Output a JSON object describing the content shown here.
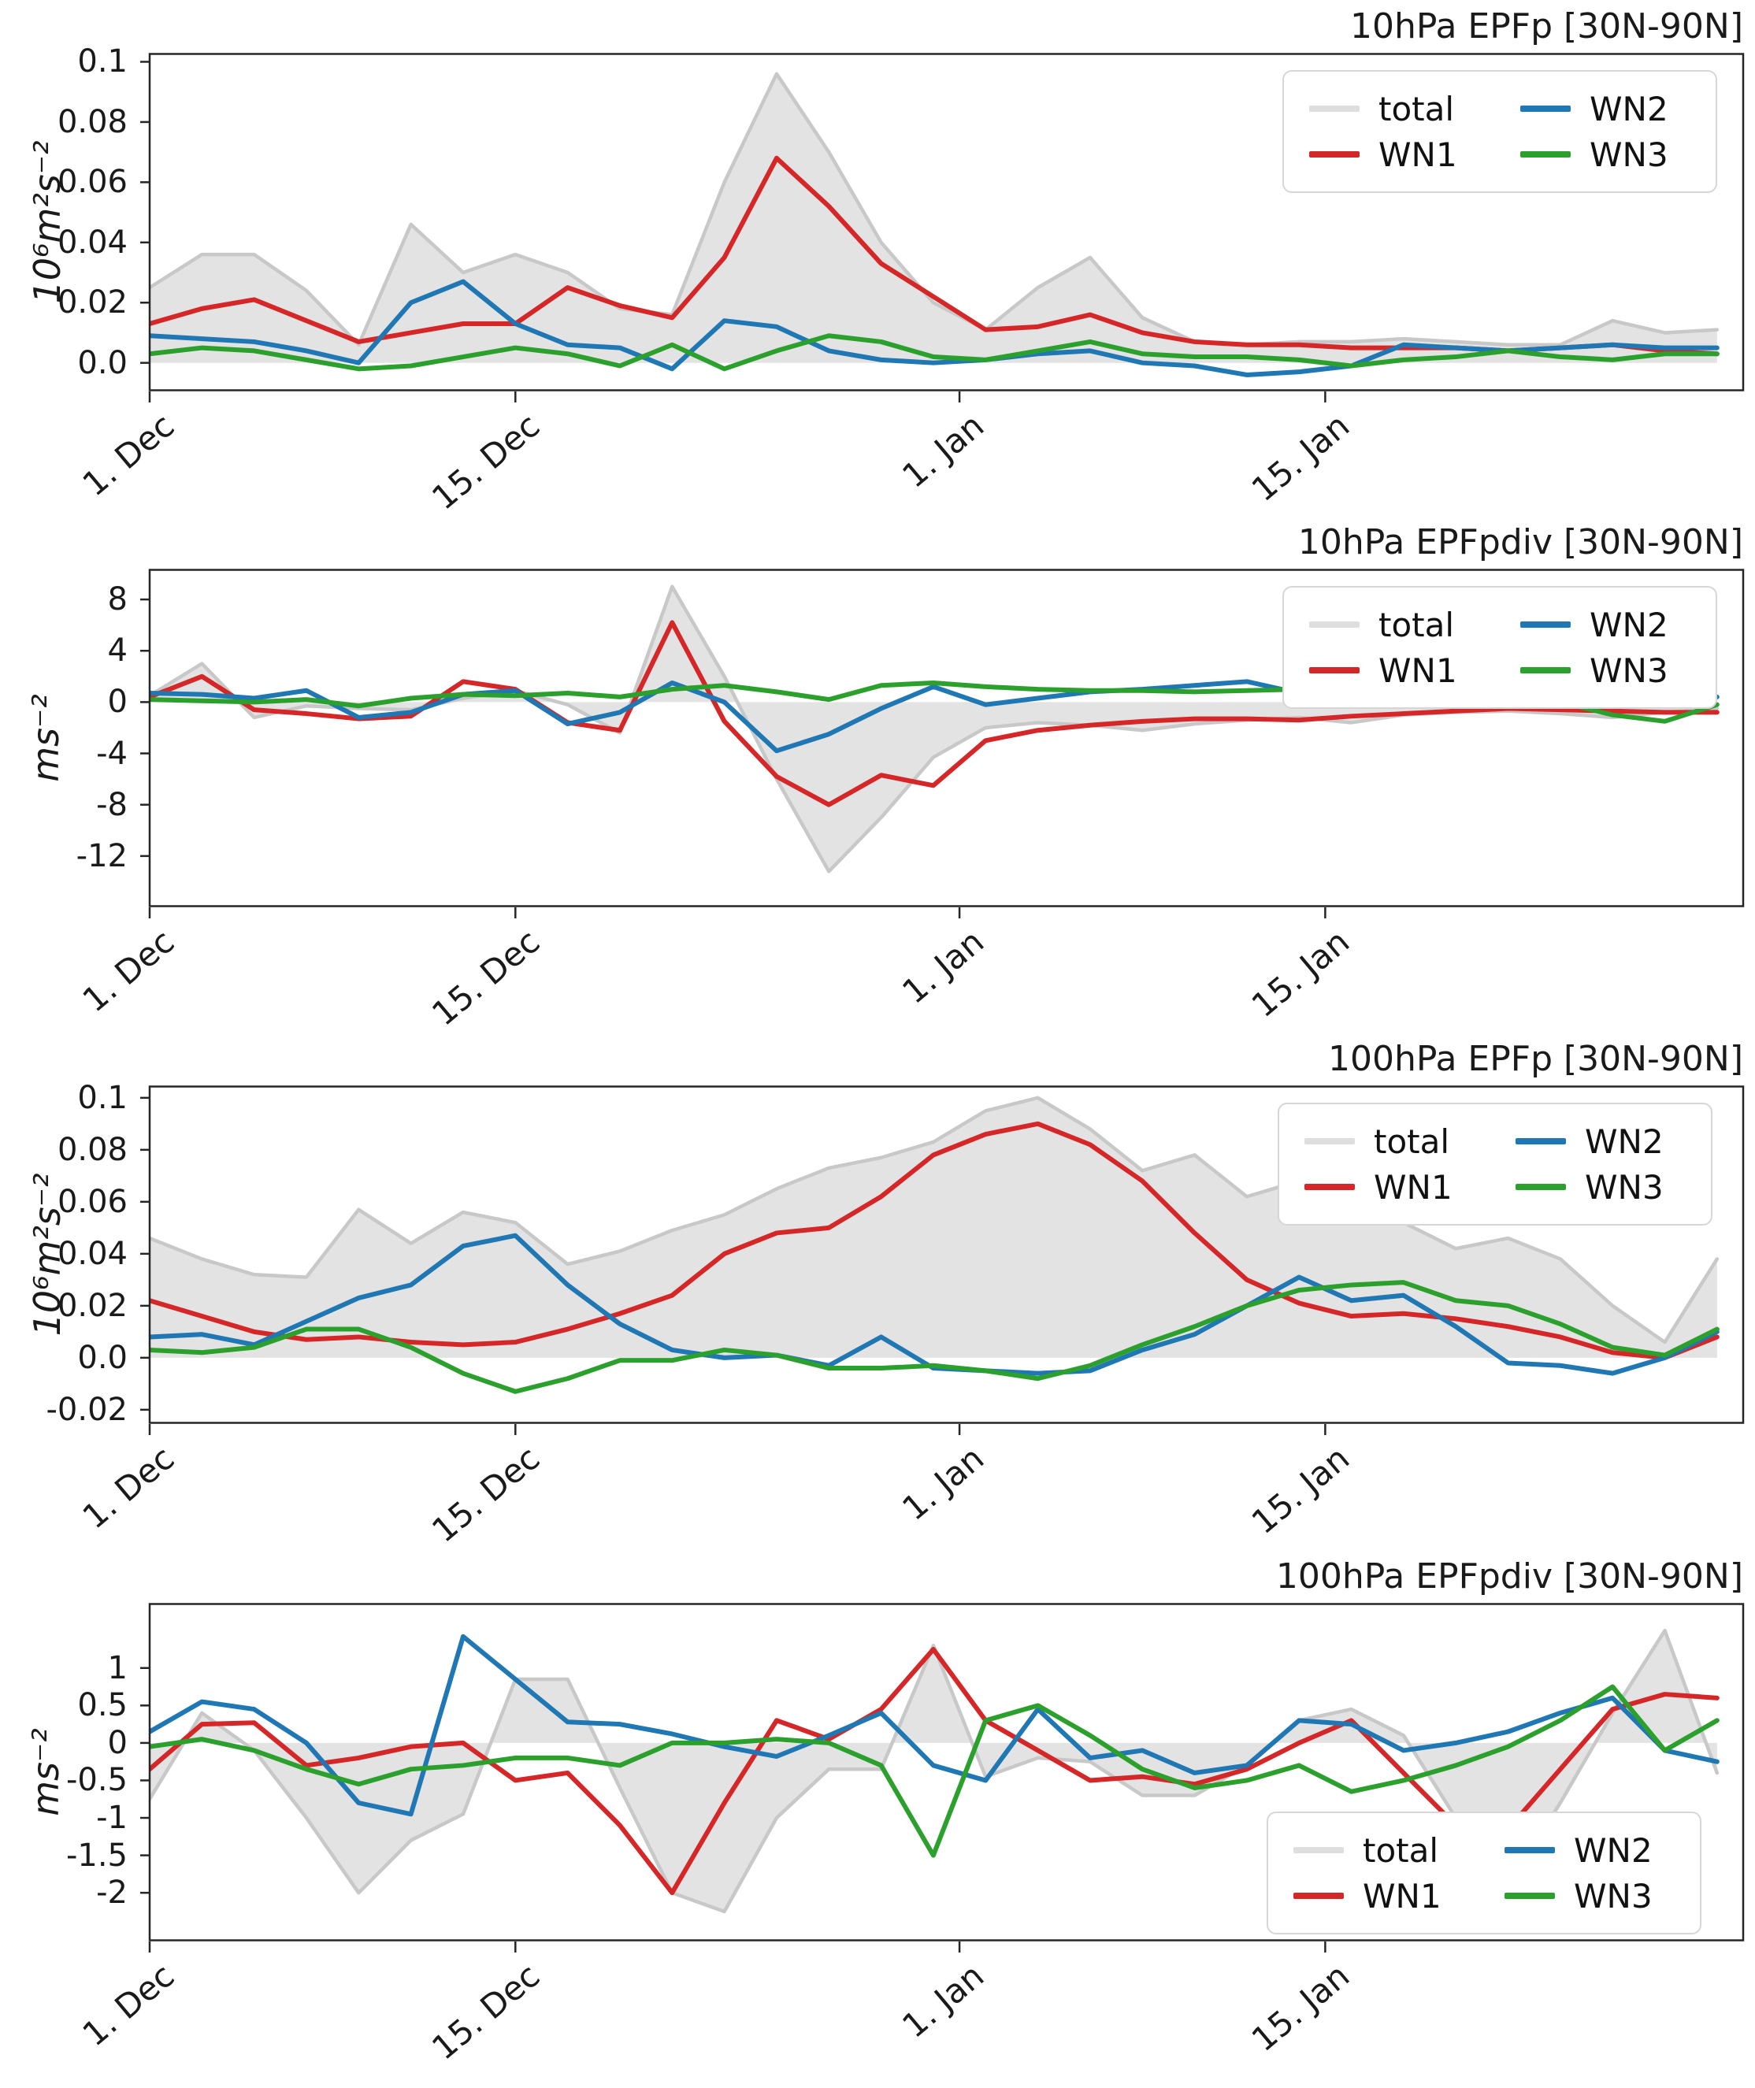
{
  "colors": {
    "total_fill": "#e3e3e3",
    "total_line": "#c8c8c8",
    "legend_total": "#dedede",
    "wn1": "#d62728",
    "wn2": "#1f77b4",
    "wn3": "#2ca02c",
    "axis": "#262626"
  },
  "legend": {
    "entries": [
      {
        "label": "total",
        "color_key": "legend_total"
      },
      {
        "label": "WN1",
        "color_key": "wn1"
      },
      {
        "label": "WN2",
        "color_key": "wn2"
      },
      {
        "label": "WN3",
        "color_key": "wn3"
      }
    ]
  },
  "chart_data": {
    "type": "line",
    "x_axis_note": "days since 1 Dec, daily time series estimated at 2-day resolution",
    "x_days": [
      0,
      2,
      4,
      6,
      8,
      10,
      12,
      14,
      16,
      18,
      20,
      22,
      24,
      26,
      28,
      30,
      32,
      34,
      36,
      38,
      40,
      42,
      44,
      46,
      48,
      50,
      52,
      54,
      56,
      58,
      60
    ],
    "x_range": [
      0,
      61
    ],
    "x_ticks": [
      {
        "day": 0,
        "label": "1. Dec"
      },
      {
        "day": 14,
        "label": "15. Dec"
      },
      {
        "day": 31,
        "label": "1. Jan"
      },
      {
        "day": 45,
        "label": "15. Jan"
      }
    ],
    "panels": [
      {
        "title": "10hPa EPFp [30N-90N]",
        "ylabel": "10⁶m²s⁻²",
        "ylim": [
          -0.0095,
          0.103
        ],
        "yticks": [
          {
            "v": 0.1,
            "label": "0.1"
          },
          {
            "v": 0.08,
            "label": "0.08"
          },
          {
            "v": 0.06,
            "label": "0.06"
          },
          {
            "v": 0.04,
            "label": "0.04"
          },
          {
            "v": 0.02,
            "label": "0.02"
          },
          {
            "v": 0.0,
            "label": "0.0"
          }
        ],
        "legend_position": "upper right",
        "series": [
          {
            "name": "total",
            "style": "area",
            "values": [
              0.025,
              0.036,
              0.036,
              0.024,
              0.006,
              0.046,
              0.03,
              0.036,
              0.03,
              0.018,
              0.016,
              0.06,
              0.096,
              0.07,
              0.04,
              0.02,
              0.011,
              0.025,
              0.035,
              0.015,
              0.007,
              0.006,
              0.007,
              0.007,
              0.008,
              0.007,
              0.006,
              0.006,
              0.014,
              0.01,
              0.011
            ]
          },
          {
            "name": "WN1",
            "style": "line",
            "color_key": "wn1",
            "values": [
              0.013,
              0.018,
              0.021,
              0.014,
              0.007,
              0.01,
              0.013,
              0.013,
              0.025,
              0.019,
              0.015,
              0.035,
              0.068,
              0.052,
              0.033,
              0.022,
              0.011,
              0.012,
              0.016,
              0.01,
              0.007,
              0.006,
              0.006,
              0.005,
              0.005,
              0.005,
              0.004,
              0.005,
              0.006,
              0.004,
              0.003
            ]
          },
          {
            "name": "WN2",
            "style": "line",
            "color_key": "wn2",
            "values": [
              0.009,
              0.008,
              0.007,
              0.004,
              0.0,
              0.02,
              0.027,
              0.013,
              0.006,
              0.005,
              -0.002,
              0.014,
              0.012,
              0.004,
              0.001,
              0.0,
              0.001,
              0.003,
              0.004,
              0.0,
              -0.001,
              -0.004,
              -0.003,
              -0.001,
              0.006,
              0.005,
              0.004,
              0.005,
              0.006,
              0.005,
              0.005
            ]
          },
          {
            "name": "WN3",
            "style": "line",
            "color_key": "wn3",
            "values": [
              0.003,
              0.005,
              0.004,
              0.001,
              -0.002,
              -0.001,
              0.002,
              0.005,
              0.003,
              -0.001,
              0.006,
              -0.002,
              0.004,
              0.009,
              0.007,
              0.002,
              0.001,
              0.004,
              0.007,
              0.003,
              0.002,
              0.002,
              0.001,
              -0.001,
              0.001,
              0.002,
              0.004,
              0.002,
              0.001,
              0.003,
              0.003
            ]
          }
        ]
      },
      {
        "title": "10hPa EPFpdiv [30N-90N]",
        "ylabel": "ms⁻²",
        "ylim": [
          -16.0,
          10.4
        ],
        "yticks": [
          {
            "v": 8,
            "label": "8"
          },
          {
            "v": 4,
            "label": "4"
          },
          {
            "v": 0,
            "label": "0"
          },
          {
            "v": -4,
            "label": "-4"
          },
          {
            "v": -8,
            "label": "-8"
          },
          {
            "v": -12,
            "label": "-12"
          }
        ],
        "legend_position": "upper right",
        "series": [
          {
            "name": "total",
            "style": "area",
            "values": [
              0.5,
              3.0,
              -1.2,
              -0.3,
              -0.5,
              -0.6,
              0.3,
              0.9,
              -0.2,
              -2.4,
              9.0,
              2.0,
              -6.0,
              -13.2,
              -9.0,
              -4.3,
              -2.0,
              -1.6,
              -1.8,
              -2.2,
              -1.7,
              -1.4,
              -1.2,
              -1.6,
              -1.0,
              -0.8,
              -0.7,
              -0.9,
              -1.2,
              -0.8,
              -0.5
            ]
          },
          {
            "name": "WN1",
            "style": "line",
            "color_key": "wn1",
            "values": [
              0.4,
              2.0,
              -0.6,
              -0.9,
              -1.3,
              -1.1,
              1.6,
              1.0,
              -1.6,
              -2.2,
              6.2,
              -1.5,
              -5.8,
              -8.0,
              -5.7,
              -6.5,
              -3.0,
              -2.2,
              -1.8,
              -1.5,
              -1.3,
              -1.3,
              -1.4,
              -1.1,
              -0.9,
              -0.7,
              -0.5,
              -0.6,
              -0.7,
              -0.8,
              -0.8
            ]
          },
          {
            "name": "WN2",
            "style": "line",
            "color_key": "wn2",
            "values": [
              0.7,
              0.6,
              0.3,
              0.9,
              -1.2,
              -0.8,
              0.6,
              0.9,
              -1.7,
              -0.8,
              1.5,
              0.0,
              -3.8,
              -2.5,
              -0.5,
              1.2,
              -0.2,
              0.3,
              0.8,
              1.0,
              1.3,
              1.6,
              0.7,
              0.3,
              0.5,
              0.4,
              0.3,
              0.2,
              0.3,
              0.5,
              0.4
            ]
          },
          {
            "name": "WN3",
            "style": "line",
            "color_key": "wn3",
            "values": [
              0.2,
              0.1,
              0.0,
              0.2,
              -0.3,
              0.3,
              0.6,
              0.5,
              0.7,
              0.4,
              1.0,
              1.3,
              0.8,
              0.2,
              1.3,
              1.5,
              1.2,
              1.0,
              0.9,
              0.9,
              0.8,
              0.9,
              1.0,
              1.1,
              0.9,
              0.7,
              0.3,
              0.0,
              -1.0,
              -1.5,
              -0.2
            ]
          }
        ]
      },
      {
        "title": "100hPa EPFp [30N-90N]",
        "ylabel": "10⁶m²s⁻²",
        "ylim": [
          -0.0255,
          0.1048
        ],
        "yticks": [
          {
            "v": 0.1,
            "label": "0.1"
          },
          {
            "v": 0.08,
            "label": "0.08"
          },
          {
            "v": 0.06,
            "label": "0.06"
          },
          {
            "v": 0.04,
            "label": "0.04"
          },
          {
            "v": 0.02,
            "label": "0.02"
          },
          {
            "v": 0.0,
            "label": "0.0"
          },
          {
            "v": -0.02,
            "label": "-0.02"
          }
        ],
        "legend_position": "upper right",
        "series": [
          {
            "name": "total",
            "style": "area",
            "values": [
              0.046,
              0.038,
              0.032,
              0.031,
              0.057,
              0.044,
              0.056,
              0.052,
              0.036,
              0.041,
              0.049,
              0.055,
              0.065,
              0.073,
              0.077,
              0.083,
              0.095,
              0.1,
              0.088,
              0.072,
              0.078,
              0.062,
              0.068,
              0.062,
              0.052,
              0.042,
              0.046,
              0.038,
              0.02,
              0.006,
              0.038
            ]
          },
          {
            "name": "WN1",
            "style": "line",
            "color_key": "wn1",
            "values": [
              0.022,
              0.016,
              0.01,
              0.007,
              0.008,
              0.006,
              0.005,
              0.006,
              0.011,
              0.017,
              0.024,
              0.04,
              0.048,
              0.05,
              0.062,
              0.078,
              0.086,
              0.09,
              0.082,
              0.068,
              0.048,
              0.03,
              0.021,
              0.016,
              0.017,
              0.015,
              0.012,
              0.008,
              0.002,
              0.0,
              0.008
            ]
          },
          {
            "name": "WN2",
            "style": "line",
            "color_key": "wn2",
            "values": [
              0.008,
              0.009,
              0.005,
              0.014,
              0.023,
              0.028,
              0.043,
              0.047,
              0.028,
              0.013,
              0.003,
              0.0,
              0.001,
              -0.003,
              0.008,
              -0.004,
              -0.005,
              -0.006,
              -0.005,
              0.003,
              0.009,
              0.02,
              0.031,
              0.022,
              0.024,
              0.012,
              -0.002,
              -0.003,
              -0.006,
              0.0,
              0.01
            ]
          },
          {
            "name": "WN3",
            "style": "line",
            "color_key": "wn3",
            "values": [
              0.003,
              0.002,
              0.004,
              0.011,
              0.011,
              0.004,
              -0.006,
              -0.013,
              -0.008,
              -0.001,
              -0.001,
              0.003,
              0.001,
              -0.004,
              -0.004,
              -0.003,
              -0.005,
              -0.008,
              -0.003,
              0.005,
              0.012,
              0.02,
              0.026,
              0.028,
              0.029,
              0.022,
              0.02,
              0.013,
              0.004,
              0.001,
              0.011
            ]
          }
        ]
      },
      {
        "title": "100hPa EPFpdiv [30N-90N]",
        "ylabel": "ms⁻²",
        "ylim": [
          -2.65,
          1.87
        ],
        "yticks": [
          {
            "v": 1,
            "label": "1"
          },
          {
            "v": 0.5,
            "label": "0.5"
          },
          {
            "v": 0,
            "label": "0"
          },
          {
            "v": -0.5,
            "label": "-0.5"
          },
          {
            "v": -1,
            "label": "-1"
          },
          {
            "v": -1.5,
            "label": "-1.5"
          },
          {
            "v": -2,
            "label": "-2"
          }
        ],
        "legend_position": "lower right",
        "series": [
          {
            "name": "total",
            "style": "area",
            "values": [
              -0.75,
              0.4,
              -0.1,
              -1.0,
              -2.0,
              -1.3,
              -0.95,
              0.85,
              0.85,
              -0.6,
              -2.0,
              -2.25,
              -1.0,
              -0.35,
              -0.35,
              1.3,
              -0.45,
              -0.2,
              -0.25,
              -0.7,
              -0.7,
              -0.3,
              0.3,
              0.45,
              0.1,
              -1.0,
              -1.9,
              -0.8,
              0.4,
              1.5,
              -0.4
            ]
          },
          {
            "name": "WN1",
            "style": "line",
            "color_key": "wn1",
            "values": [
              -0.35,
              0.25,
              0.27,
              -0.3,
              -0.2,
              -0.05,
              0.0,
              -0.5,
              -0.4,
              -1.1,
              -2.0,
              -0.8,
              0.3,
              0.05,
              0.45,
              1.25,
              0.3,
              -0.1,
              -0.5,
              -0.45,
              -0.55,
              -0.35,
              0.0,
              0.3,
              -0.4,
              -1.1,
              -1.15,
              -0.35,
              0.45,
              0.65,
              0.6
            ]
          },
          {
            "name": "WN2",
            "style": "line",
            "color_key": "wn2",
            "values": [
              0.15,
              0.55,
              0.45,
              0.0,
              -0.8,
              -0.95,
              1.42,
              0.85,
              0.28,
              0.25,
              0.12,
              -0.05,
              -0.18,
              0.1,
              0.4,
              -0.3,
              -0.5,
              0.45,
              -0.2,
              -0.1,
              -0.4,
              -0.3,
              0.3,
              0.25,
              -0.1,
              0.0,
              0.15,
              0.4,
              0.6,
              -0.1,
              -0.25
            ]
          },
          {
            "name": "WN3",
            "style": "line",
            "color_key": "wn3",
            "values": [
              -0.05,
              0.05,
              -0.1,
              -0.35,
              -0.55,
              -0.35,
              -0.3,
              -0.2,
              -0.2,
              -0.3,
              0.0,
              0.0,
              0.05,
              0.0,
              -0.3,
              -1.5,
              0.3,
              0.5,
              0.1,
              -0.35,
              -0.6,
              -0.5,
              -0.3,
              -0.65,
              -0.5,
              -0.3,
              -0.05,
              0.3,
              0.75,
              -0.1,
              0.3
            ]
          }
        ]
      }
    ]
  }
}
